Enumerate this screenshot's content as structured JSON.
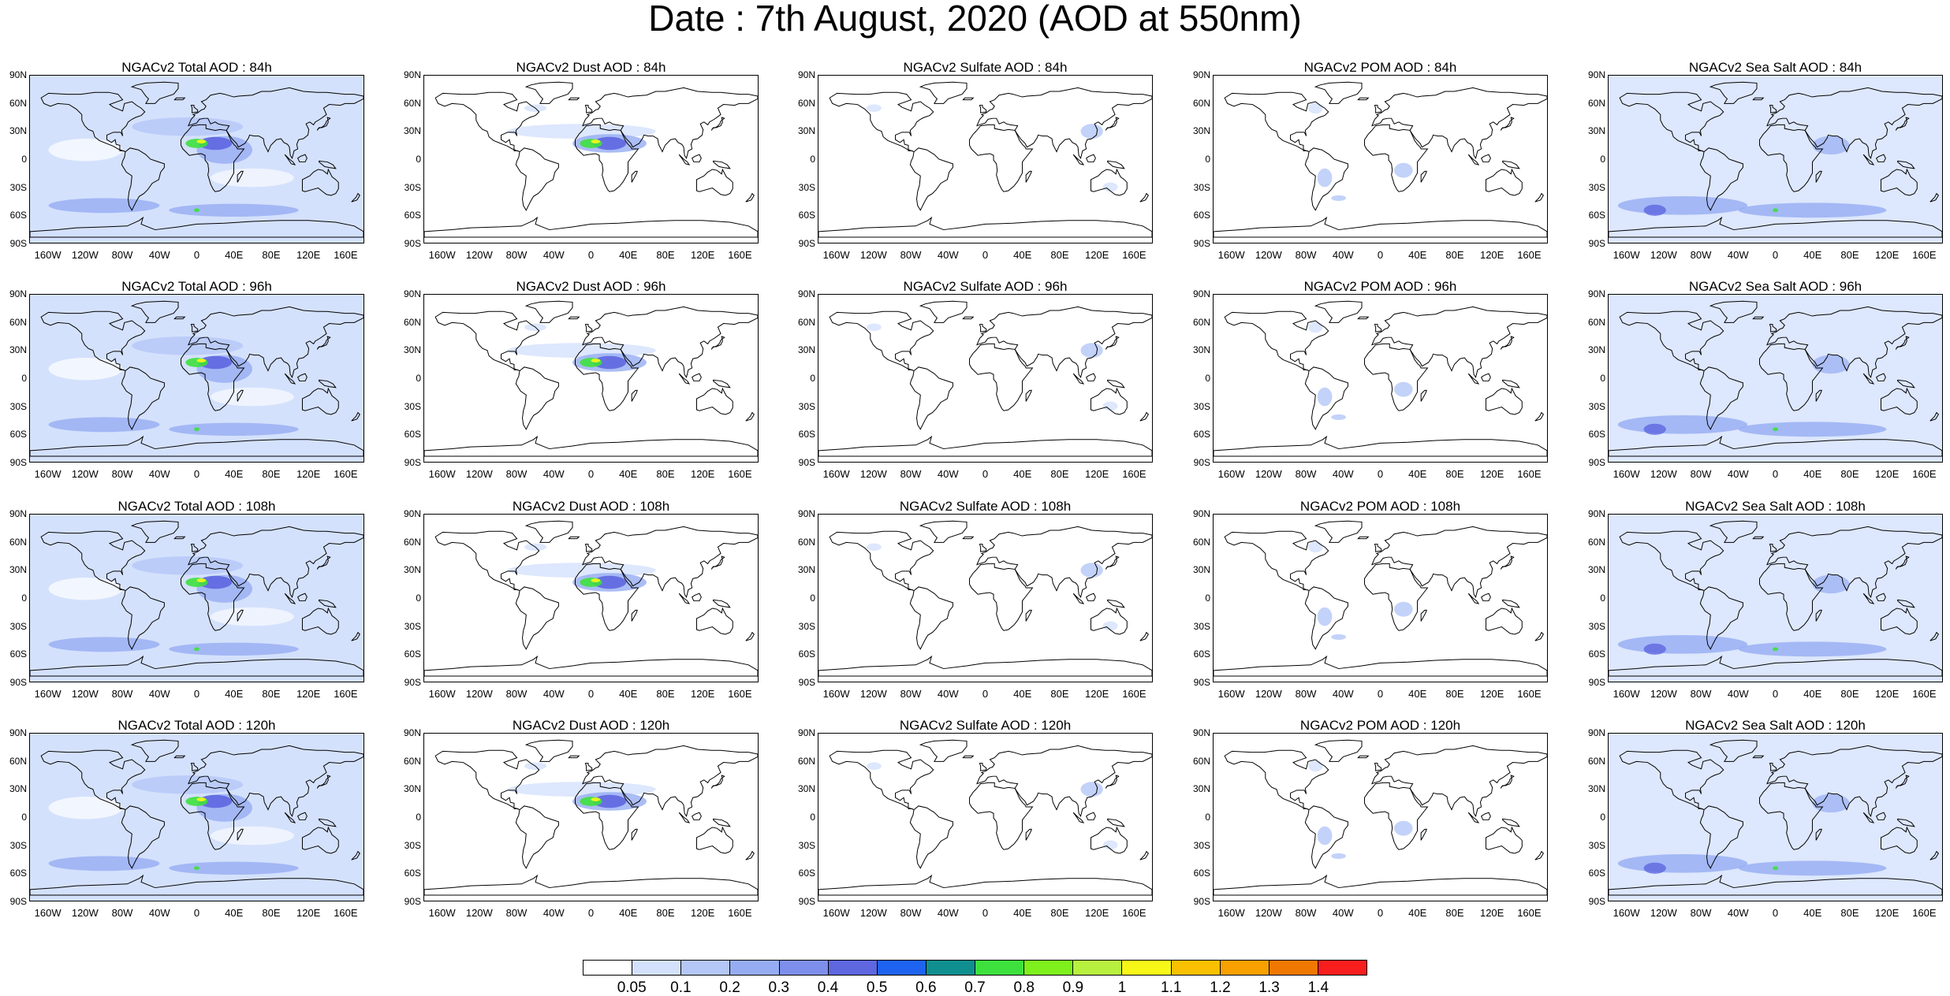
{
  "main_title": "Date : 7th August, 2020 (AOD at 550nm)",
  "lat_labels": [
    "90N",
    "60N",
    "30N",
    "0",
    "30S",
    "60S",
    "90S"
  ],
  "lon_labels": [
    "160W",
    "120W",
    "80W",
    "40W",
    "0",
    "40E",
    "80E",
    "120E",
    "160E"
  ],
  "panels": [
    {
      "title": "NGACv2 Total AOD : 84h",
      "species": "total"
    },
    {
      "title": "NGACv2 Dust AOD : 84h",
      "species": "dust"
    },
    {
      "title": "NGACv2 Sulfate AOD : 84h",
      "species": "sulfate"
    },
    {
      "title": "NGACv2 POM AOD : 84h",
      "species": "pom"
    },
    {
      "title": "NGACv2 Sea Salt AOD : 84h",
      "species": "seasalt"
    },
    {
      "title": "NGACv2 Total AOD : 96h",
      "species": "total"
    },
    {
      "title": "NGACv2 Dust AOD : 96h",
      "species": "dust"
    },
    {
      "title": "NGACv2 Sulfate AOD : 96h",
      "species": "sulfate"
    },
    {
      "title": "NGACv2 POM AOD : 96h",
      "species": "pom"
    },
    {
      "title": "NGACv2 Sea Salt AOD : 96h",
      "species": "seasalt"
    },
    {
      "title": "NGACv2 Total AOD : 108h",
      "species": "total"
    },
    {
      "title": "NGACv2 Dust AOD : 108h",
      "species": "dust"
    },
    {
      "title": "NGACv2 Sulfate AOD : 108h",
      "species": "sulfate"
    },
    {
      "title": "NGACv2 POM AOD : 108h",
      "species": "pom"
    },
    {
      "title": "NGACv2 Sea Salt AOD : 108h",
      "species": "seasalt"
    },
    {
      "title": "NGACv2 Total AOD : 120h",
      "species": "total"
    },
    {
      "title": "NGACv2 Dust AOD : 120h",
      "species": "dust"
    },
    {
      "title": "NGACv2 Sulfate AOD : 120h",
      "species": "sulfate"
    },
    {
      "title": "NGACv2 POM AOD : 120h",
      "species": "pom"
    },
    {
      "title": "NGACv2 Sea Salt  AOD : 120h",
      "species": "seasalt"
    }
  ],
  "colorbar": {
    "labels": [
      "0.05",
      "0.1",
      "0.2",
      "0.3",
      "0.4",
      "0.5",
      "0.6",
      "0.7",
      "0.8",
      "0.9",
      "1",
      "1.1",
      "1.2",
      "1.3",
      "1.4"
    ],
    "colors": [
      "#ffffff",
      "#d4e1fc",
      "#b4c7f7",
      "#96acf2",
      "#7d8fea",
      "#5e66e0",
      "#1e63ef",
      "#0f8f8f",
      "#3ee03e",
      "#7ef01c",
      "#b8f040",
      "#f8f818",
      "#f8c000",
      "#f8a000",
      "#f07800",
      "#f81e1e"
    ]
  }
}
